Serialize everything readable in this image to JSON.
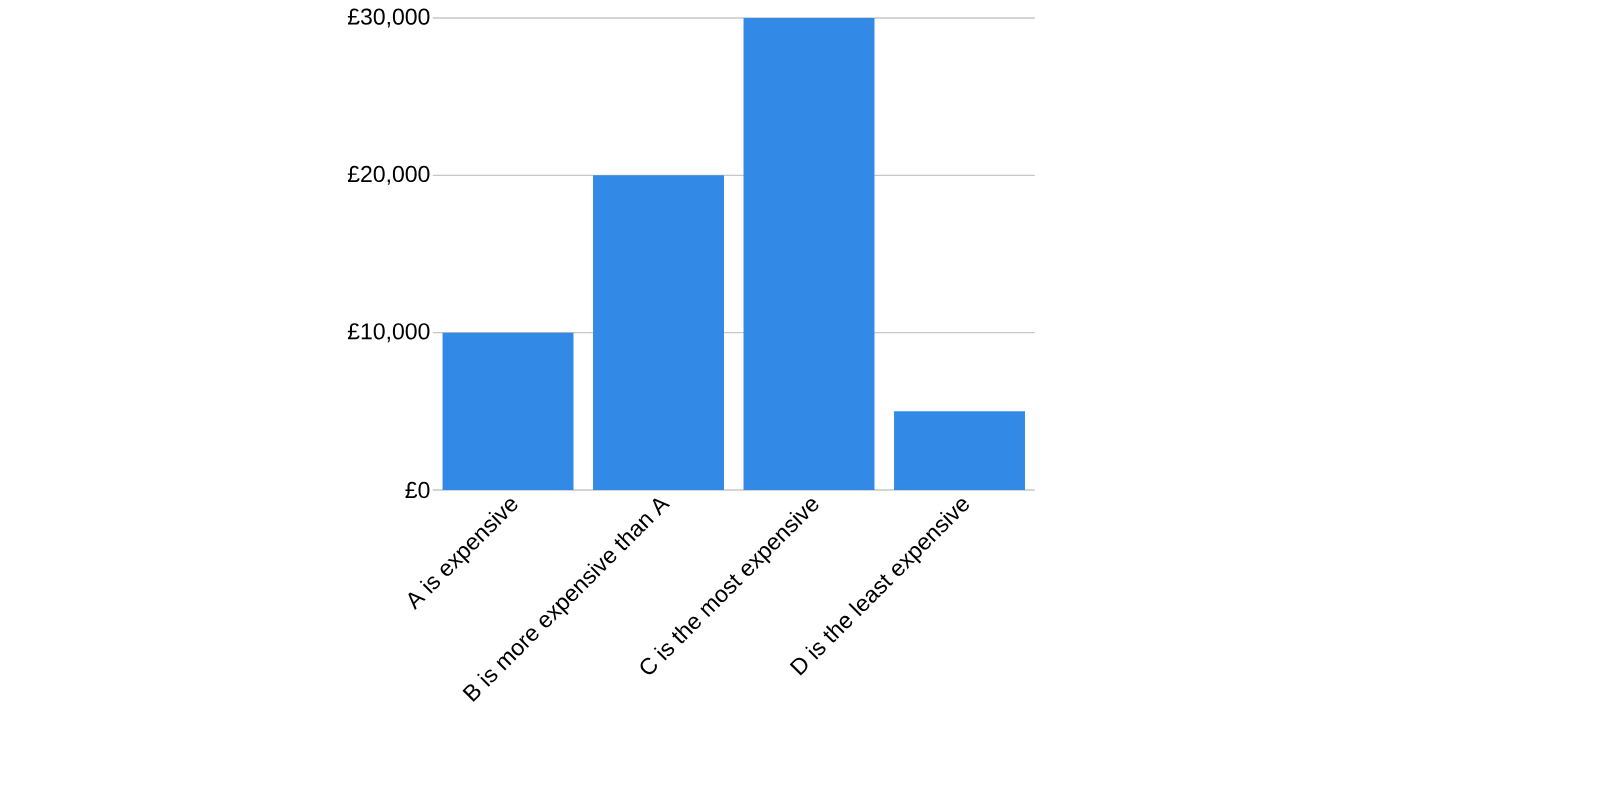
{
  "chart_data": {
    "type": "bar",
    "categories": [
      "A is expensive",
      "B is more expensive than A",
      "C is the most expensive",
      "D is the least expensive"
    ],
    "values": [
      10000,
      20000,
      30000,
      5000
    ],
    "color": "#3289e6",
    "ylim": [
      0,
      30000
    ],
    "yticks": [
      {
        "value": 0,
        "label": "£0"
      },
      {
        "value": 10000,
        "label": "£10,000"
      },
      {
        "value": 20000,
        "label": "£20,000"
      },
      {
        "value": 30000,
        "label": "£30,000"
      }
    ],
    "grid": "y"
  }
}
